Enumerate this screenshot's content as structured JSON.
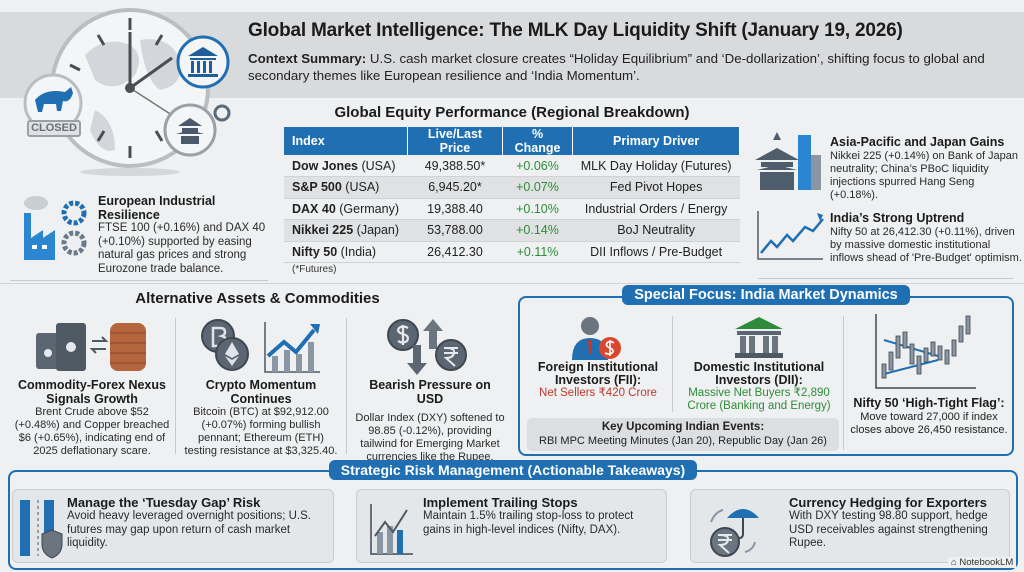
{
  "header": {
    "title": "Global Market Intelligence: The MLK Day Liquidity Shift (January 19, 2026)",
    "summary_label": "Context Summary:",
    "summary_text": " U.S. cash market closure creates “Holiday Equilibrium” and ‘De-dollarization’, shifting focus to global and secondary themes like European resilience and ‘India Momentum’.",
    "closed_badge": "CLOSED"
  },
  "equity": {
    "title": "Global Equity Performance (Regional Breakdown)",
    "columns": [
      "Index",
      "Live/Last Price",
      "% Change",
      "Primary Driver"
    ],
    "rows": [
      {
        "name": "Dow Jones",
        "region": "(USA)",
        "price": "49,388.50*",
        "change": "+0.06%",
        "driver": "MLK Day Holiday (Futures)"
      },
      {
        "name": "S&P 500",
        "region": "(USA)",
        "price": "6,945.20*",
        "change": "+0.07%",
        "driver": "Fed Pivot Hopes"
      },
      {
        "name": "DAX 40",
        "region": "(Germany)",
        "price": "19,388.40",
        "change": "+0.10%",
        "driver": "Industrial Orders / Energy"
      },
      {
        "name": "Nikkei 225",
        "region": "(Japan)",
        "price": "53,788.00",
        "change": "+0.14%",
        "driver": "BoJ Neutrality"
      },
      {
        "name": "Nifty 50",
        "region": "(India)",
        "price": "26,412.30",
        "change": "+0.11%",
        "driver": "DII Inflows / Pre-Budget"
      }
    ],
    "footnote": "(*Futures)"
  },
  "europe": {
    "title": "European Industrial Resilience",
    "text": "FTSE 100 (+0.16%) and DAX 40 (+0.10%) supported by easing natural gas prices and strong Eurozone trade balance."
  },
  "asia": {
    "title": "Asia-Pacific and Japan Gains",
    "text": "Nikkei 225 (+0.14%) on Bank of Japan neutrality; China’s PBoC liquidity injections spurred Hang Seng (+0.18%)."
  },
  "india_trend": {
    "title": "India’s Strong Uptrend",
    "text": "Nifty 50 at 26,412.30 (+0.11%), driven by massive domestic institutional inflows shead of 'Pre-Budget' optimism."
  },
  "alt": {
    "title": "Alternative Assets & Commodities",
    "items": [
      {
        "title": "Commodity-Forex Nexus Signals Growth",
        "text": "Brent Crude above $52 (+0.48%) and Copper breached $6 (+0.65%), indicating end of 2025 deflationary scare."
      },
      {
        "title": "Crypto Momentum Continues",
        "text": "Bitcoin (BTC) at $92,912.00 (+0.07%) forming bullish pennant; Ethereum (ETH) testing resistance at $3,325.40."
      },
      {
        "title": "Bearish Pressure on USD",
        "text": "Dollar Index (DXY) softened to 98.85 (-0.12%), providing tailwind for Emerging Market currencies like the Rupee."
      }
    ]
  },
  "india": {
    "title": "Special Focus: India Market Dynamics",
    "fii_title": "Foreign Institutional Investors (FII):",
    "fii_value": "Net Sellers ₹420 Crore",
    "dii_title": "Domestic Institutional Investors (DII):",
    "dii_value": "Massive Net Buyers ₹2,890 Crore (Banking and Energy)",
    "events_title": "Key Upcoming Indian Events:",
    "events_text": "RBI MPC Meeting Minutes (Jan 20), Republic Day (Jan 26)",
    "flag_title": "Nifty 50 ‘High-Tight Flag’:",
    "flag_text": "Move toward 27,000 if index closes above 26,450 resistance."
  },
  "risk": {
    "title": "Strategic Risk Management (Actionable Takeaways)",
    "items": [
      {
        "title": "Manage the ‘Tuesday Gap’ Risk",
        "text": "Avoid heavy leveraged overnight positions; U.S. futures may gap upon return of cash market liquidity."
      },
      {
        "title": "Implement Trailing Stops",
        "text": "Maintain 1.5% trailing stop-loss to protect gains in high-level indices (Nifty, DAX)."
      },
      {
        "title": "Currency Hedging for Exporters",
        "text": "With DXY testing 98.80 support, hedge USD receivables against strengthening Rupee."
      }
    ]
  },
  "watermark": "NotebookLM",
  "colors": {
    "accent": "#1f6fb2",
    "positive": "#2e8b3a",
    "negative": "#c0392b",
    "background": "#eef0f1"
  }
}
